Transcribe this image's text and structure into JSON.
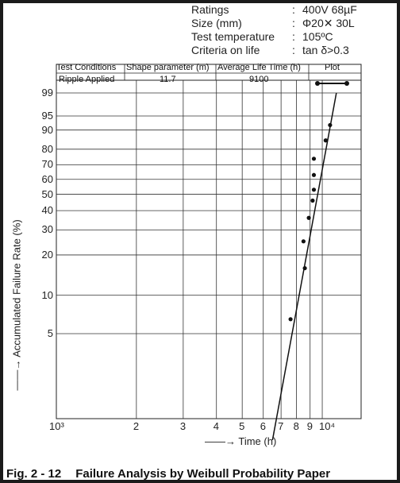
{
  "specs": [
    {
      "label": "Ratings",
      "colon": ":",
      "value": "400V 68µF"
    },
    {
      "label": "Size (mm)",
      "colon": ":",
      "value": "Φ20✕ 30L"
    },
    {
      "label": "Test temperature",
      "colon": ":",
      "value": "105ºC"
    },
    {
      "label": "Criteria on life",
      "colon": ":",
      "value": "tan δ>0.3"
    }
  ],
  "table": {
    "headers": [
      "Test Conditions",
      "Shape parameter (m)",
      "Average Life Time (h)",
      "Plot"
    ],
    "row": [
      "Ripple Applied",
      "11.7",
      "9100",
      ""
    ]
  },
  "caption": {
    "fig": "Fig. 2 - 12",
    "title": "Failure Analysis by Weibull Probability Paper"
  },
  "chart_data": {
    "type": "scatter",
    "xlabel": "——→ Time (h)",
    "ylabel": "——→ Accumulated Failure Rate (%)",
    "x_scale": "log",
    "y_scale": "weibull",
    "xlim": [
      1000,
      14000
    ],
    "ylim": [
      0.7,
      99
    ],
    "x_ticks": [
      {
        "value": 1000,
        "label": "10³"
      },
      {
        "value": 2000,
        "label": "2"
      },
      {
        "value": 3000,
        "label": "3"
      },
      {
        "value": 4000,
        "label": "4"
      },
      {
        "value": 5000,
        "label": "5"
      },
      {
        "value": 6000,
        "label": "6"
      },
      {
        "value": 7000,
        "label": "7"
      },
      {
        "value": 8000,
        "label": "8"
      },
      {
        "value": 9000,
        "label": "9"
      },
      {
        "value": 10000,
        "label": "10⁴"
      }
    ],
    "y_ticks": [
      99,
      95,
      90,
      80,
      70,
      60,
      50,
      40,
      30,
      20,
      10,
      5
    ],
    "grid": true,
    "points": [
      {
        "x": 7600,
        "y": 6.5
      },
      {
        "x": 8600,
        "y": 16
      },
      {
        "x": 8500,
        "y": 25
      },
      {
        "x": 8900,
        "y": 36
      },
      {
        "x": 9200,
        "y": 46
      },
      {
        "x": 9300,
        "y": 53
      },
      {
        "x": 9300,
        "y": 63
      },
      {
        "x": 9300,
        "y": 74
      },
      {
        "x": 10300,
        "y": 85
      },
      {
        "x": 10700,
        "y": 92
      }
    ],
    "fit_line": [
      {
        "x": 6500,
        "y": 0.7
      },
      {
        "x": 11300,
        "y": 99
      }
    ]
  }
}
